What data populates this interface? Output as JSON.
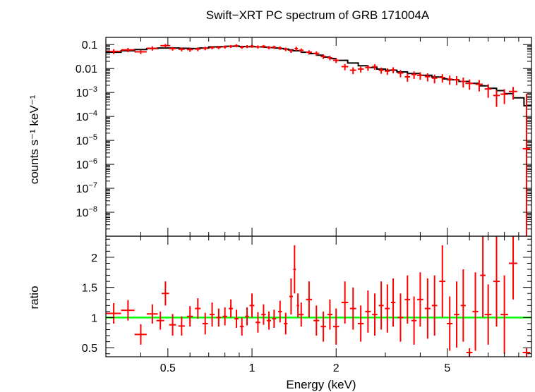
{
  "chart_data": {
    "type": "scatter",
    "title": "Swift−XRT PC spectrum of GRB 171004A",
    "xlabel": "Energy (keV)",
    "x_scale": "log",
    "xlim": [
      0.3,
      10
    ],
    "x_ticks": [
      {
        "value": 0.5,
        "label": "0.5"
      },
      {
        "value": 1,
        "label": "1"
      },
      {
        "value": 2,
        "label": "2"
      },
      {
        "value": 5,
        "label": "5"
      }
    ],
    "colors": {
      "data": "#ff0000",
      "model": "#000000",
      "reference_line": "#00ff00",
      "axes": "#000000"
    },
    "panels": [
      {
        "name": "spectrum",
        "ylabel": "counts s⁻¹ keV⁻¹",
        "y_scale": "log",
        "ylim": [
          1e-09,
          0.2
        ],
        "y_ticks": [
          {
            "value": 0.1,
            "base": "0.1",
            "exp": ""
          },
          {
            "value": 0.01,
            "base": "0.01",
            "exp": ""
          },
          {
            "value": 0.001,
            "base": "10",
            "exp": "−3"
          },
          {
            "value": 0.0001,
            "base": "10",
            "exp": "−4"
          },
          {
            "value": 1e-05,
            "base": "10",
            "exp": "−5"
          },
          {
            "value": 1e-06,
            "base": "10",
            "exp": "−6"
          },
          {
            "value": 1e-07,
            "base": "10",
            "exp": "−7"
          },
          {
            "value": 1e-08,
            "base": "10",
            "exp": "−8"
          }
        ],
        "model": {
          "name": "model",
          "x": [
            0.3,
            0.34,
            0.38,
            0.42,
            0.46,
            0.5,
            0.55,
            0.6,
            0.65,
            0.7,
            0.75,
            0.8,
            0.85,
            0.9,
            0.95,
            1.0,
            1.05,
            1.1,
            1.15,
            1.2,
            1.25,
            1.3,
            1.35,
            1.4,
            1.5,
            1.6,
            1.7,
            1.8,
            1.9,
            2.0,
            2.2,
            2.4,
            2.6,
            2.8,
            3.0,
            3.3,
            3.6,
            4.0,
            4.4,
            4.8,
            5.0,
            5.5,
            6.0,
            6.5,
            7.0,
            7.5,
            8.0,
            8.6,
            9.4,
            10.0
          ],
          "y": [
            0.048,
            0.055,
            0.062,
            0.068,
            0.072,
            0.072,
            0.07,
            0.068,
            0.072,
            0.08,
            0.082,
            0.085,
            0.086,
            0.083,
            0.082,
            0.082,
            0.08,
            0.078,
            0.075,
            0.072,
            0.068,
            0.065,
            0.06,
            0.055,
            0.048,
            0.042,
            0.036,
            0.03,
            0.026,
            0.022,
            0.017,
            0.013,
            0.011,
            0.0095,
            0.0085,
            0.0072,
            0.0062,
            0.0052,
            0.0044,
            0.0037,
            0.0034,
            0.0029,
            0.0024,
            0.0019,
            0.0015,
            0.0012,
            0.0009,
            0.0006,
            0.00028,
            0.00015
          ]
        },
        "series": [
          {
            "name": "data",
            "x": [
              0.32,
              0.36,
              0.4,
              0.44,
              0.49,
              0.52,
              0.56,
              0.6,
              0.64,
              0.68,
              0.72,
              0.76,
              0.8,
              0.84,
              0.88,
              0.92,
              0.96,
              1.0,
              1.05,
              1.1,
              1.15,
              1.2,
              1.26,
              1.32,
              1.38,
              1.44,
              1.5,
              1.6,
              1.7,
              1.8,
              1.9,
              2.0,
              2.15,
              2.3,
              2.45,
              2.6,
              2.75,
              2.9,
              3.05,
              3.2,
              3.4,
              3.6,
              3.8,
              4.0,
              4.25,
              4.5,
              4.8,
              5.1,
              5.4,
              5.7,
              6.0,
              6.5,
              7.0,
              7.5,
              8.0,
              8.6,
              9.6
            ],
            "x_err": [
              0.02,
              0.02,
              0.02,
              0.02,
              0.02,
              0.015,
              0.015,
              0.015,
              0.015,
              0.015,
              0.015,
              0.015,
              0.015,
              0.015,
              0.015,
              0.015,
              0.015,
              0.02,
              0.02,
              0.02,
              0.02,
              0.02,
              0.02,
              0.02,
              0.02,
              0.02,
              0.03,
              0.04,
              0.04,
              0.04,
              0.04,
              0.05,
              0.06,
              0.06,
              0.06,
              0.06,
              0.06,
              0.06,
              0.06,
              0.06,
              0.08,
              0.08,
              0.08,
              0.1,
              0.1,
              0.1,
              0.12,
              0.12,
              0.12,
              0.12,
              0.2,
              0.2,
              0.2,
              0.2,
              0.25,
              0.3,
              0.3
            ],
            "y": [
              0.052,
              0.06,
              0.05,
              0.07,
              0.09,
              0.068,
              0.064,
              0.062,
              0.065,
              0.07,
              0.075,
              0.076,
              0.08,
              0.084,
              0.09,
              0.078,
              0.083,
              0.085,
              0.08,
              0.084,
              0.075,
              0.078,
              0.072,
              0.064,
              0.055,
              0.068,
              0.058,
              0.048,
              0.043,
              0.032,
              0.028,
              0.022,
              0.012,
              0.0085,
              0.0095,
              0.011,
              0.012,
              0.0085,
              0.0078,
              0.0088,
              0.0065,
              0.0045,
              0.0056,
              0.0052,
              0.0046,
              0.004,
              0.0042,
              0.0036,
              0.0034,
              0.0029,
              0.0024,
              0.0022,
              0.0014,
              0.00075,
              0.00085,
              0.0011,
              4.5e-06
            ],
            "y_lo": [
              0.04,
              0.048,
              0.04,
              0.056,
              0.074,
              0.056,
              0.052,
              0.05,
              0.053,
              0.058,
              0.063,
              0.064,
              0.068,
              0.072,
              0.077,
              0.066,
              0.071,
              0.073,
              0.068,
              0.072,
              0.063,
              0.066,
              0.06,
              0.053,
              0.045,
              0.055,
              0.047,
              0.038,
              0.034,
              0.025,
              0.022,
              0.017,
              0.0085,
              0.0058,
              0.0068,
              0.008,
              0.0089,
              0.006,
              0.0054,
              0.0063,
              0.0043,
              0.0028,
              0.0037,
              0.0034,
              0.0029,
              0.0024,
              0.0026,
              0.0021,
              0.002,
              0.0016,
              0.0013,
              0.0011,
              0.0006,
              0.00025,
              0.00033,
              0.0005,
              5e-10
            ],
            "y_hi": [
              0.064,
              0.072,
              0.06,
              0.084,
              0.106,
              0.08,
              0.076,
              0.074,
              0.077,
              0.082,
              0.087,
              0.088,
              0.092,
              0.096,
              0.103,
              0.09,
              0.095,
              0.097,
              0.092,
              0.096,
              0.087,
              0.09,
              0.084,
              0.075,
              0.065,
              0.081,
              0.069,
              0.058,
              0.052,
              0.039,
              0.034,
              0.027,
              0.0155,
              0.0112,
              0.0122,
              0.014,
              0.0151,
              0.011,
              0.0102,
              0.0113,
              0.0087,
              0.0062,
              0.0075,
              0.007,
              0.0063,
              0.0056,
              0.0058,
              0.0051,
              0.0048,
              0.0042,
              0.0035,
              0.0033,
              0.0022,
              0.00125,
              0.00137,
              0.0017,
              0.0009
            ]
          }
        ]
      },
      {
        "name": "ratio",
        "ylabel": "ratio",
        "y_scale": "linear",
        "ylim": [
          0.35,
          2.35
        ],
        "y_ticks": [
          {
            "value": 0.5,
            "label": "0.5"
          },
          {
            "value": 1,
            "label": "1"
          },
          {
            "value": 1.5,
            "label": "1.5"
          },
          {
            "value": 2,
            "label": "2"
          }
        ],
        "reference_line": 1,
        "series": [
          {
            "name": "ratio",
            "x": [
              0.32,
              0.36,
              0.4,
              0.44,
              0.47,
              0.49,
              0.52,
              0.56,
              0.6,
              0.64,
              0.68,
              0.72,
              0.76,
              0.8,
              0.84,
              0.88,
              0.92,
              0.96,
              1.0,
              1.05,
              1.1,
              1.15,
              1.2,
              1.26,
              1.32,
              1.38,
              1.42,
              1.46,
              1.5,
              1.6,
              1.7,
              1.8,
              1.9,
              2.0,
              2.15,
              2.3,
              2.45,
              2.6,
              2.75,
              2.9,
              3.05,
              3.2,
              3.4,
              3.6,
              3.8,
              4.0,
              4.25,
              4.5,
              4.8,
              5.1,
              5.4,
              5.7,
              6.0,
              6.3,
              6.7,
              7.0,
              7.5,
              8.0,
              8.6,
              9.6
            ],
            "x_err": [
              0.02,
              0.02,
              0.02,
              0.02,
              0.015,
              0.015,
              0.015,
              0.015,
              0.015,
              0.015,
              0.015,
              0.015,
              0.015,
              0.015,
              0.015,
              0.015,
              0.015,
              0.015,
              0.02,
              0.02,
              0.02,
              0.02,
              0.02,
              0.02,
              0.02,
              0.02,
              0.015,
              0.015,
              0.03,
              0.04,
              0.04,
              0.04,
              0.04,
              0.05,
              0.06,
              0.06,
              0.06,
              0.06,
              0.06,
              0.06,
              0.06,
              0.06,
              0.08,
              0.08,
              0.08,
              0.1,
              0.1,
              0.1,
              0.12,
              0.12,
              0.12,
              0.12,
              0.15,
              0.15,
              0.15,
              0.2,
              0.2,
              0.25,
              0.3,
              0.3
            ],
            "y": [
              1.07,
              1.12,
              0.72,
              1.06,
              0.95,
              1.4,
              0.88,
              0.86,
              1.02,
              1.15,
              0.9,
              1.05,
              1.0,
              1.02,
              1.15,
              0.98,
              0.85,
              1.02,
              1.2,
              0.92,
              1.05,
              0.95,
              0.98,
              1.1,
              0.9,
              1.35,
              1.8,
              1.2,
              1.05,
              1.3,
              0.95,
              0.85,
              1.05,
              0.85,
              1.25,
              1.15,
              0.9,
              1.1,
              1.05,
              1.2,
              1.15,
              1.25,
              1.0,
              1.3,
              0.95,
              1.3,
              1.15,
              1.2,
              1.6,
              0.9,
              1.05,
              1.2,
              0.42,
              1.1,
              1.7,
              1.05,
              1.6,
              1.05,
              1.9,
              0.42
            ],
            "y_lo": [
              0.9,
              0.95,
              0.55,
              0.9,
              0.8,
              1.2,
              0.7,
              0.7,
              0.85,
              0.98,
              0.72,
              0.85,
              0.85,
              0.87,
              1.0,
              0.83,
              0.7,
              0.87,
              1.0,
              0.75,
              0.88,
              0.8,
              0.83,
              0.92,
              0.72,
              1.05,
              1.4,
              1.0,
              0.85,
              1.0,
              0.7,
              0.6,
              0.8,
              0.55,
              0.9,
              0.8,
              0.6,
              0.75,
              0.7,
              0.8,
              0.75,
              0.85,
              0.6,
              0.9,
              0.55,
              0.85,
              0.65,
              0.7,
              1.0,
              0.45,
              0.5,
              0.6,
              0.35,
              0.45,
              1.0,
              0.55,
              0.85,
              0.4,
              1.3,
              0.35
            ],
            "y_hi": [
              1.24,
              1.29,
              0.89,
              1.22,
              1.1,
              1.6,
              1.06,
              1.02,
              1.19,
              1.32,
              1.08,
              1.25,
              1.15,
              1.17,
              1.3,
              1.13,
              1.0,
              1.17,
              1.4,
              1.09,
              1.22,
              1.1,
              1.13,
              1.28,
              1.08,
              1.65,
              2.2,
              1.4,
              1.25,
              1.6,
              1.2,
              1.1,
              1.3,
              1.15,
              1.6,
              1.5,
              1.2,
              1.45,
              1.4,
              1.6,
              1.55,
              1.65,
              1.4,
              1.7,
              1.35,
              1.75,
              1.65,
              1.7,
              2.2,
              1.35,
              1.6,
              1.8,
              0.49,
              1.75,
              2.35,
              1.55,
              2.35,
              1.7,
              2.35,
              0.49
            ]
          }
        ]
      }
    ]
  }
}
